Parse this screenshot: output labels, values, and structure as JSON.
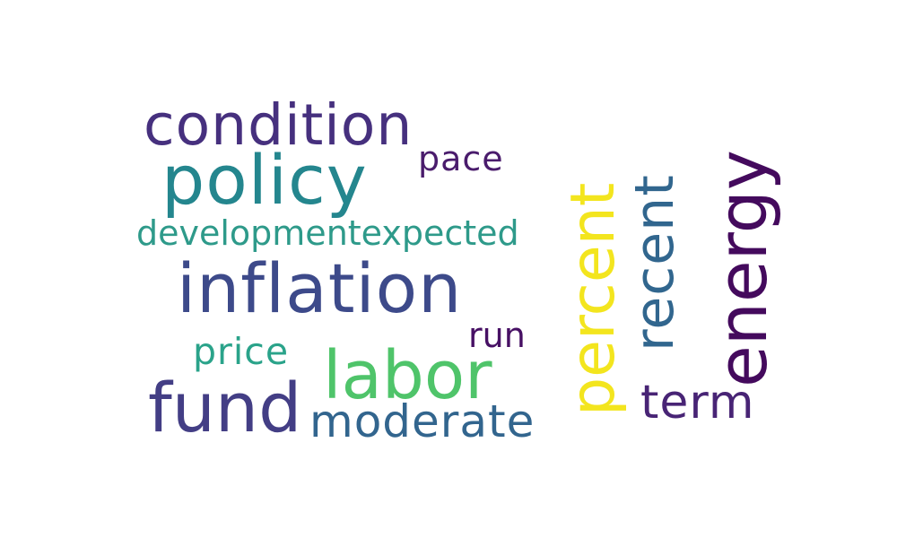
{
  "words": {
    "condition": {
      "text": "condition",
      "color": "#46307e"
    },
    "policy": {
      "text": "policy",
      "color": "#24868e"
    },
    "pace": {
      "text": "pace",
      "color": "#4a1c6c"
    },
    "developmentexpected": {
      "text": "developmentexpected",
      "color": "#2e9a8a"
    },
    "inflation": {
      "text": "inflation",
      "color": "#3d4a8a"
    },
    "run": {
      "text": "run",
      "color": "#471064"
    },
    "price": {
      "text": "price",
      "color": "#2aa38a"
    },
    "labor": {
      "text": "labor",
      "color": "#4fc46a"
    },
    "fund": {
      "text": "fund",
      "color": "#433e85"
    },
    "moderate": {
      "text": "moderate",
      "color": "#32658e"
    },
    "term": {
      "text": "term",
      "color": "#482475"
    },
    "percent": {
      "text": "percent",
      "color": "#f3e51e"
    },
    "recent": {
      "text": "recent",
      "color": "#31668e"
    },
    "energy": {
      "text": "energy",
      "color": "#440a5d"
    }
  }
}
